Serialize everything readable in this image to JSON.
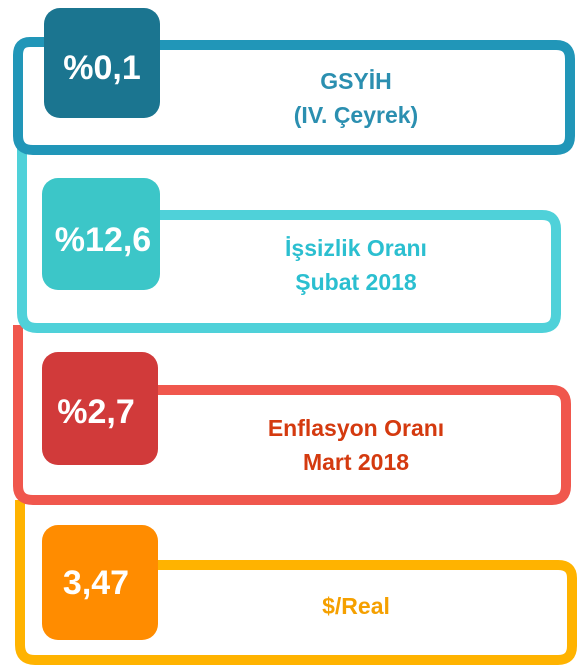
{
  "items": [
    {
      "value": "%0,1",
      "label": [
        "GSYİH",
        "(IV. Çeyrek)"
      ]
    },
    {
      "value": "%12,6",
      "label": [
        "İşsizlik Oranı",
        "Şubat 2018"
      ]
    },
    {
      "value": "%2,7",
      "label": [
        "Enflasyon Oranı",
        "Mart 2018"
      ]
    },
    {
      "value": "3,47",
      "label": [
        "$/Real"
      ]
    }
  ]
}
